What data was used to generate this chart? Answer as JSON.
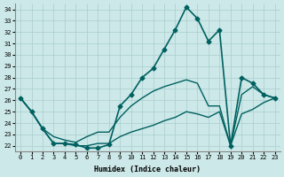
{
  "xlabel": "Humidex (Indice chaleur)",
  "ylabel": "",
  "xlim": [
    -0.5,
    23.5
  ],
  "ylim": [
    21.5,
    34.5
  ],
  "yticks": [
    22,
    23,
    24,
    25,
    26,
    27,
    28,
    29,
    30,
    31,
    32,
    33,
    34
  ],
  "xticks": [
    0,
    1,
    2,
    3,
    4,
    5,
    6,
    7,
    8,
    9,
    10,
    11,
    12,
    13,
    14,
    15,
    16,
    17,
    18,
    19,
    20,
    21,
    22,
    23
  ],
  "background_color": "#cce8e8",
  "grid_color": "#aacece",
  "line_color": "#006060",
  "lines": [
    {
      "x": [
        0,
        1,
        2,
        3,
        4,
        5,
        6,
        7,
        8,
        9,
        10,
        11,
        12,
        13,
        14,
        15,
        16,
        17,
        18,
        19,
        20,
        21,
        22,
        23
      ],
      "y": [
        26.2,
        25.0,
        23.5,
        22.2,
        22.2,
        22.1,
        21.8,
        21.8,
        22.1,
        25.5,
        26.5,
        28.0,
        28.8,
        30.5,
        32.2,
        34.2,
        33.2,
        31.2,
        32.2,
        22.0,
        28.0,
        27.5,
        26.5,
        26.2
      ],
      "marker": "D",
      "markersize": 2.5,
      "linewidth": 1.2
    },
    {
      "x": [
        0,
        1,
        2,
        3,
        4,
        5,
        6,
        7,
        8,
        9,
        10,
        11,
        12,
        13,
        14,
        15,
        16,
        17,
        18,
        19,
        20,
        21,
        22,
        23
      ],
      "y": [
        26.2,
        25.0,
        23.5,
        22.8,
        22.5,
        22.3,
        22.8,
        23.2,
        23.2,
        24.5,
        25.5,
        26.2,
        26.8,
        27.2,
        27.5,
        27.8,
        27.5,
        25.5,
        25.5,
        22.0,
        26.5,
        27.2,
        26.5,
        26.2
      ],
      "marker": null,
      "markersize": 0,
      "linewidth": 1.0
    },
    {
      "x": [
        0,
        1,
        2,
        3,
        4,
        5,
        6,
        7,
        8,
        9,
        10,
        11,
        12,
        13,
        14,
        15,
        16,
        17,
        18,
        19,
        20,
        21,
        22,
        23
      ],
      "y": [
        26.2,
        25.0,
        23.5,
        22.2,
        22.2,
        22.0,
        22.0,
        22.2,
        22.2,
        22.8,
        23.2,
        23.5,
        23.8,
        24.2,
        24.5,
        25.0,
        24.8,
        24.5,
        25.0,
        22.0,
        24.8,
        25.2,
        25.8,
        26.2
      ],
      "marker": null,
      "markersize": 0,
      "linewidth": 1.0
    }
  ]
}
